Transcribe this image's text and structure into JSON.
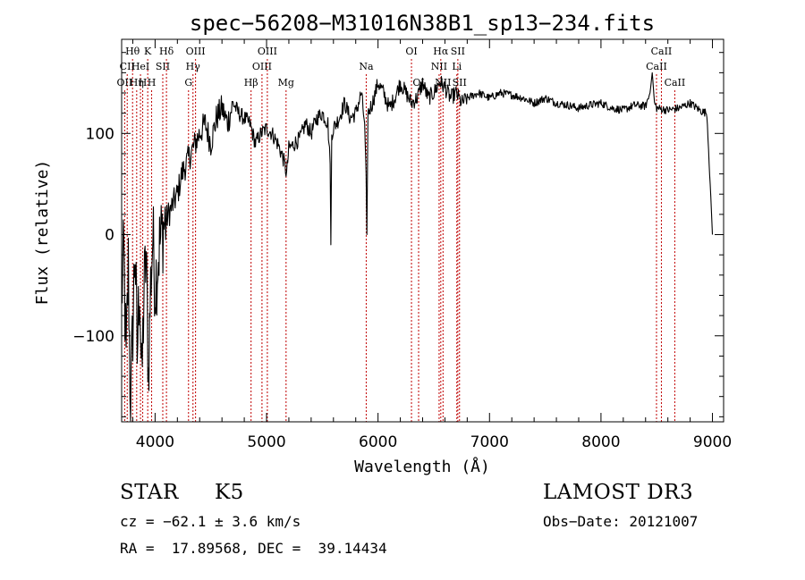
{
  "chart_data": {
    "type": "line",
    "title": "spec−56208−M31016N38B1_sp13−234.fits",
    "xlabel": "Wavelength (Å)",
    "ylabel": "Flux (relative)",
    "xlim": [
      3700,
      9100
    ],
    "ylim": [
      -185,
      193
    ],
    "xticks": [
      4000,
      5000,
      6000,
      7000,
      8000,
      9000
    ],
    "xtick_labels": [
      "4000",
      "5000",
      "6000",
      "7000",
      "8000",
      "9000"
    ],
    "yticks": [
      100,
      0,
      -100
    ],
    "ytick_labels": [
      "100",
      "0",
      "−100"
    ],
    "grid": false,
    "series": [
      {
        "name": "spectrum",
        "x": [
          3700,
          3720,
          3740,
          3760,
          3780,
          3800,
          3820,
          3840,
          3860,
          3880,
          3900,
          3920,
          3940,
          3960,
          3980,
          4000,
          4040,
          4080,
          4120,
          4160,
          4200,
          4240,
          4280,
          4320,
          4360,
          4400,
          4450,
          4500,
          4550,
          4600,
          4650,
          4700,
          4750,
          4800,
          4850,
          4900,
          4950,
          5000,
          5050,
          5100,
          5150,
          5180,
          5200,
          5250,
          5300,
          5350,
          5400,
          5450,
          5500,
          5550,
          5570,
          5577,
          5585,
          5600,
          5650,
          5700,
          5750,
          5800,
          5850,
          5880,
          5893,
          5900,
          5910,
          5950,
          6000,
          6050,
          6100,
          6150,
          6200,
          6250,
          6300,
          6350,
          6400,
          6450,
          6500,
          6550,
          6563,
          6600,
          6650,
          6700,
          6750,
          6800,
          6900,
          7000,
          7100,
          7200,
          7300,
          7400,
          7500,
          7600,
          7700,
          7800,
          7900,
          8000,
          8100,
          8200,
          8300,
          8400,
          8440,
          8460,
          8480,
          8500,
          8600,
          8700,
          8800,
          8900,
          8950,
          8980,
          9000
        ],
        "y": [
          -60,
          -20,
          -130,
          -30,
          -175,
          -90,
          -10,
          -120,
          -40,
          -150,
          -60,
          -20,
          -140,
          -50,
          0,
          -50,
          -10,
          10,
          20,
          30,
          40,
          60,
          70,
          80,
          90,
          100,
          110,
          90,
          115,
          125,
          110,
          130,
          120,
          115,
          110,
          90,
          100,
          105,
          100,
          90,
          75,
          60,
          85,
          90,
          95,
          110,
          100,
          115,
          120,
          110,
          70,
          -10,
          100,
          105,
          115,
          130,
          115,
          120,
          140,
          110,
          60,
          0,
          120,
          130,
          150,
          140,
          125,
          135,
          150,
          140,
          130,
          135,
          150,
          135,
          140,
          150,
          150,
          145,
          135,
          140,
          130,
          135,
          140,
          135,
          140,
          138,
          135,
          130,
          135,
          130,
          128,
          125,
          128,
          130,
          125,
          123,
          128,
          127,
          140,
          160,
          130,
          125,
          123,
          125,
          130,
          122,
          120,
          50,
          0
        ]
      }
    ],
    "line_markers": [
      {
        "wl": 3727,
        "label": "OII",
        "row": 3
      },
      {
        "wl": 3750,
        "label": "CII",
        "row": 2
      },
      {
        "wl": 3798,
        "label": "Hθ",
        "row": 1
      },
      {
        "wl": 3835,
        "label": "Hη",
        "row": 3
      },
      {
        "wl": 3869,
        "label": "HeI",
        "row": 2
      },
      {
        "wl": 3889,
        "label": "H",
        "row": 3
      },
      {
        "wl": 3934,
        "label": "K",
        "row": 1
      },
      {
        "wl": 3969,
        "label": "H",
        "row": 3
      },
      {
        "wl": 4069,
        "label": "SII",
        "row": 2
      },
      {
        "wl": 4102,
        "label": "Hδ",
        "row": 1
      },
      {
        "wl": 4300,
        "label": "G",
        "row": 3
      },
      {
        "wl": 4340,
        "label": "Hγ",
        "row": 2
      },
      {
        "wl": 4363,
        "label": "OIII",
        "row": 1
      },
      {
        "wl": 4861,
        "label": "Hβ",
        "row": 3
      },
      {
        "wl": 4959,
        "label": "OIII",
        "row": 2
      },
      {
        "wl": 5007,
        "label": "OIII",
        "row": 1
      },
      {
        "wl": 5175,
        "label": "Mg",
        "row": 3
      },
      {
        "wl": 5894,
        "label": "Na",
        "row": 2
      },
      {
        "wl": 6300,
        "label": "OI",
        "row": 1
      },
      {
        "wl": 6364,
        "label": "OI",
        "row": 3
      },
      {
        "wl": 6548,
        "label": "NII",
        "row": 2
      },
      {
        "wl": 6563,
        "label": "Hα",
        "row": 1
      },
      {
        "wl": 6583,
        "label": "NII",
        "row": 3
      },
      {
        "wl": 6707,
        "label": "Li",
        "row": 2
      },
      {
        "wl": 6716,
        "label": "SII",
        "row": 1
      },
      {
        "wl": 6731,
        "label": "SII",
        "row": 3
      },
      {
        "wl": 8498,
        "label": "CaII",
        "row": 2
      },
      {
        "wl": 8542,
        "label": "CaII",
        "row": 1
      },
      {
        "wl": 8662,
        "label": "CaII",
        "row": 3
      }
    ],
    "marker_color": "#c00000"
  },
  "info": {
    "class_label": "STAR",
    "subclass_label": "K5",
    "survey_label": "LAMOST DR3",
    "cz_text": "cz = −62.1 ± 3.6 km/s",
    "obs_date_text": "Obs−Date: 20121007",
    "radec_text": "RA =  17.89568, DEC =  39.14434"
  }
}
